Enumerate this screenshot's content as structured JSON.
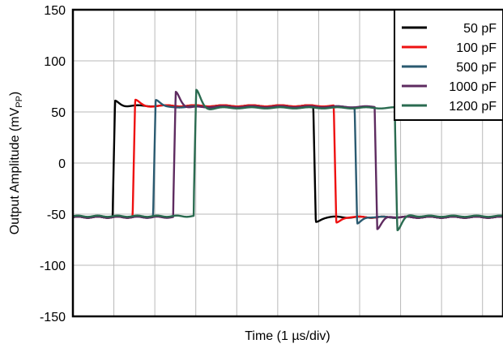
{
  "chart_data": {
    "type": "line",
    "xlabel": "Time (1 µs/div)",
    "ylabel_main": "Output Amplitude (mV",
    "ylabel_sub": "PP",
    "ylabel_close": ")",
    "ylim": [
      -150,
      150
    ],
    "yticks": [
      -150,
      -100,
      -50,
      0,
      50,
      100,
      150
    ],
    "xlim": [
      0,
      10.5
    ],
    "xgrid_divisions": 10.5,
    "grid": true,
    "legend_position": "top-right",
    "series": [
      {
        "name": "50 pF",
        "color": "#000000",
        "low": -53,
        "high": 56,
        "rise_at": 0.97,
        "fall_at": 5.87,
        "rise_peak": 68,
        "fall_peak": -65
      },
      {
        "name": "100 pF",
        "color": "#ee1111",
        "low": -53,
        "high": 56,
        "rise_at": 1.46,
        "fall_at": 6.37,
        "rise_peak": 69,
        "fall_peak": -67
      },
      {
        "name": "500 pF",
        "color": "#2a5a70",
        "low": -53,
        "high": 55,
        "rise_at": 1.96,
        "fall_at": 6.88,
        "rise_peak": 72,
        "fall_peak": -69
      },
      {
        "name": "1000 pF",
        "color": "#5e2b60",
        "low": -53,
        "high": 55,
        "rise_at": 2.45,
        "fall_at": 7.37,
        "rise_peak": 91,
        "fall_peak": -81
      },
      {
        "name": "1200 pF",
        "color": "#2a6b50",
        "low": -52,
        "high": 54,
        "rise_at": 2.95,
        "fall_at": 7.86,
        "rise_peak": 95,
        "fall_peak": -84
      }
    ]
  }
}
